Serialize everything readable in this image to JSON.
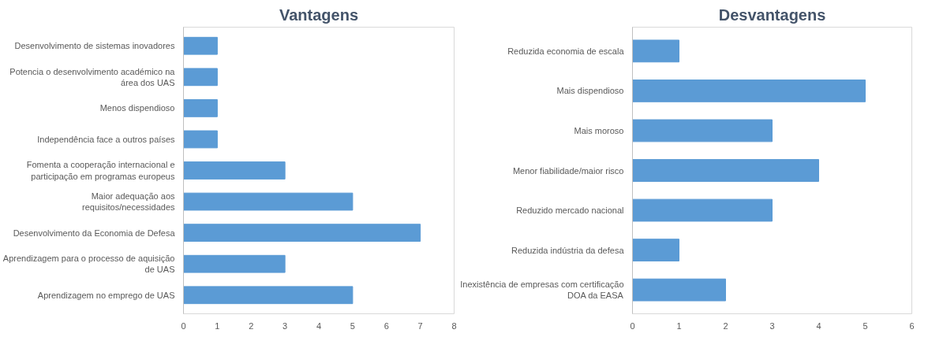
{
  "chart_data": [
    {
      "type": "bar",
      "orientation": "horizontal",
      "title": "Vantagens",
      "categories": [
        "Desenvolvimento de sistemas inovadores",
        "Potencia o desenvolvimento académico na área dos UAS",
        "Menos dispendioso",
        "Independência face a outros países",
        "Fomenta a cooperação internacional e participação em programas europeus",
        "Maior adequação aos requisitos/necessidades",
        "Desenvolvimento da Economia de Defesa",
        "Aprendizagem para o processo de aquisição de UAS",
        "Aprendizagem no emprego de UAS"
      ],
      "values": [
        1,
        1,
        1,
        1,
        3,
        5,
        7,
        3,
        5
      ],
      "color": "#5b9bd5",
      "xlim": [
        0,
        8
      ],
      "xticks": [
        0,
        1,
        2,
        3,
        4,
        5,
        6,
        7,
        8
      ],
      "grid": false
    },
    {
      "type": "bar",
      "orientation": "horizontal",
      "title": "Desvantagens",
      "categories": [
        "Reduzida economia de escala",
        "Mais dispendioso",
        "Mais moroso",
        "Menor fiabilidade/maior risco",
        "Reduzido mercado nacional",
        "Reduzida indústria da defesa",
        "Inexistência de empresas com certificação DOA da EASA"
      ],
      "values": [
        1,
        5,
        3,
        4,
        3,
        1,
        2
      ],
      "color": "#5b9bd5",
      "xlim": [
        0,
        6
      ],
      "xticks": [
        0,
        1,
        2,
        3,
        4,
        5,
        6
      ],
      "grid": false
    }
  ]
}
